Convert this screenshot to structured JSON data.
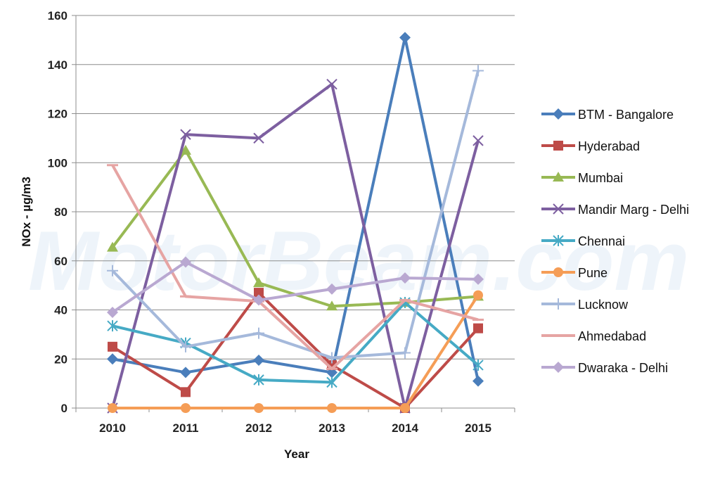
{
  "chart_data": {
    "type": "line",
    "title": "",
    "xlabel": "Year",
    "ylabel": "NOx - µg/m3",
    "categories": [
      "2010",
      "2011",
      "2012",
      "2013",
      "2014",
      "2015"
    ],
    "ylim": [
      0,
      160
    ],
    "yticks": [
      0,
      20,
      40,
      60,
      80,
      100,
      120,
      140,
      160
    ],
    "grid": true,
    "legend_position": "right",
    "watermark": "MotorBeam.com",
    "series": [
      {
        "name": "BTM - Bangalore",
        "color": "#4a7ebb",
        "marker": "diamond",
        "values": [
          20,
          14.5,
          19.5,
          14.5,
          151,
          11
        ]
      },
      {
        "name": "Hyderabad",
        "color": "#be4b48",
        "marker": "square",
        "values": [
          25,
          6.5,
          47,
          17.5,
          0,
          32.5
        ]
      },
      {
        "name": "Mumbai",
        "color": "#98b954",
        "marker": "triangle",
        "values": [
          65.5,
          105,
          51,
          41.5,
          43,
          45.5
        ]
      },
      {
        "name": "Mandir Marg - Delhi",
        "color": "#7d5fa0",
        "marker": "x",
        "values": [
          0,
          111.5,
          110,
          132,
          0,
          109
        ]
      },
      {
        "name": "Chennai",
        "color": "#46aac5",
        "marker": "star",
        "values": [
          33.5,
          26.5,
          11.5,
          10.5,
          43,
          17.5
        ]
      },
      {
        "name": "Pune",
        "color": "#f59d56",
        "marker": "circle",
        "values": [
          0,
          0,
          0,
          0,
          0,
          46
        ]
      },
      {
        "name": "Lucknow",
        "color": "#a5b9db",
        "marker": "plus",
        "values": [
          56,
          25,
          30.5,
          20.5,
          22.5,
          137.5
        ]
      },
      {
        "name": "Ahmedabad",
        "color": "#e6a4a3",
        "marker": "dash",
        "values": [
          99,
          45.5,
          43.5,
          16,
          44,
          36
        ]
      },
      {
        "name": "Dwaraka - Delhi",
        "color": "#b9a8d1",
        "marker": "diamond",
        "values": [
          39,
          59.5,
          44,
          48.5,
          53,
          52.5
        ]
      }
    ]
  }
}
